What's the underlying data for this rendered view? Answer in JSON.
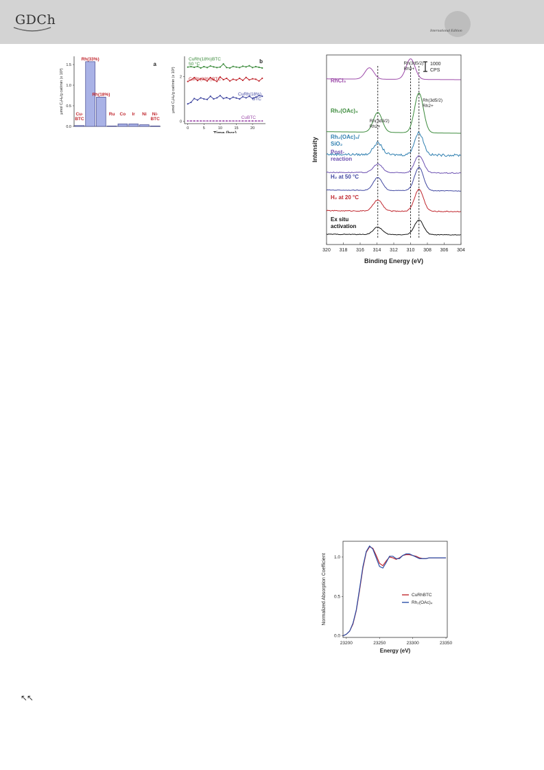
{
  "header": {
    "logo_text": "GDCh",
    "edition": "International Edition"
  },
  "colors": {
    "header_bg": "#d3d3d3",
    "bar": "#a9b2e6",
    "red_label": "#c0262d",
    "green": "#3a8a3a",
    "purple": "#9b48a8",
    "blue": "#3f46a0",
    "teal": "#2f7fb0",
    "black": "#111111"
  },
  "footer": {
    "nav_icon": "double-up-left-arrow-icon",
    "glyph": "↖↖"
  },
  "chart_data": [
    {
      "panel": "a",
      "type": "bar",
      "categories": [
        "Cu-BTC",
        "Rh(33%)",
        "Rh(18%)",
        "Ru",
        "Co",
        "Ir",
        "Ni",
        "Ni-BTC"
      ],
      "category_labels": [
        "Cu-\nBTC",
        "Rh(33%)",
        "Rh(18%)",
        "Ru",
        "Co",
        "Ir",
        "Ni",
        "Ni-\nBTC"
      ],
      "values": [
        0.02,
        1.57,
        0.71,
        0.01,
        0.06,
        0.06,
        0.04,
        0.01
      ],
      "ylabel": "μmol C₂H₆/g cat/min (x 10³)",
      "yticks": [
        "0.0",
        "0.5",
        "1.0",
        "1.5"
      ],
      "ylim": [
        0,
        1.7
      ],
      "label": "a"
    },
    {
      "panel": "b",
      "type": "line",
      "x": [
        0,
        1,
        2,
        3,
        4,
        5,
        6,
        7,
        8,
        9,
        10,
        11,
        12,
        13,
        14,
        15,
        16,
        17,
        18,
        19,
        20,
        21,
        22,
        23
      ],
      "series": [
        {
          "name": "CuRh(18%)BTC 50 °C",
          "label_lines": [
            "CuRh(18%)BTC",
            "50 °C"
          ],
          "color": "#3a8a3a",
          "values": [
            2.42,
            2.44,
            2.41,
            2.45,
            2.38,
            2.44,
            2.4,
            2.47,
            2.43,
            2.4,
            2.42,
            2.56,
            2.4,
            2.38,
            2.45,
            2.42,
            2.4,
            2.46,
            2.43,
            2.48,
            2.4,
            2.44,
            2.41,
            2.38
          ]
        },
        {
          "name": "CuRh(33%)BTC",
          "label_lines": [
            "CuRh(33%)BTC"
          ],
          "color": "#c0262d",
          "values": [
            1.78,
            1.85,
            1.95,
            1.82,
            1.9,
            1.88,
            1.8,
            1.95,
            1.85,
            1.78,
            1.98,
            1.86,
            1.92,
            1.8,
            1.88,
            1.84,
            1.92,
            1.83,
            1.96,
            1.85,
            1.9,
            1.88,
            1.8,
            1.92
          ]
        },
        {
          "name": "CuRh(18%) BTC",
          "label_lines": [
            "CuRh(18%)",
            "BTC"
          ],
          "color": "#3f46a0",
          "values": [
            0.78,
            0.85,
            1.02,
            0.95,
            1.05,
            1.0,
            0.98,
            1.12,
            1.0,
            1.05,
            1.15,
            1.02,
            1.06,
            1.0,
            1.08,
            1.04,
            1.0,
            1.1,
            1.05,
            1.12,
            1.02,
            1.08,
            1.15,
            1.12
          ]
        },
        {
          "name": "CuBTC",
          "label_lines": [
            "CuBTC"
          ],
          "color": "#9b48a8",
          "values": [
            0.02,
            0.02,
            0.02,
            0.02,
            0.02,
            0.02,
            0.02,
            0.02,
            0.02,
            0.02,
            0.02,
            0.02,
            0.02,
            0.02,
            0.02,
            0.02,
            0.02,
            0.02,
            0.02,
            0.02,
            0.02,
            0.02,
            0.02,
            0.02
          ]
        }
      ],
      "xlabel": "Time (hrs)",
      "ylabel": "μmol C₂H₆/g cat/min (x 10³)",
      "xticks": [
        "0",
        "5",
        "10",
        "15",
        "20"
      ],
      "yticks": [
        "0",
        "2"
      ],
      "xlim": [
        -1,
        24
      ],
      "ylim": [
        -0.1,
        2.9
      ],
      "label": "b"
    },
    {
      "panel": "xps",
      "type": "line",
      "xlabel": "Binding Energy (eV)",
      "ylabel": "Intensity",
      "xticks": [
        "320",
        "318",
        "316",
        "314",
        "312",
        "310",
        "308",
        "306",
        "304"
      ],
      "xlim": [
        320,
        304
      ],
      "x_reversed": true,
      "scale_bar": [
        "1000",
        "CPS"
      ],
      "reference_lines_eV": [
        313.9,
        310.0,
        309.0
      ],
      "annotations": [
        {
          "lines": [
            "Rh(3d5/2)",
            "Rh3+"
          ],
          "x": 310.0
        },
        {
          "lines": [
            "Rh(3d3/2)",
            "Rh2+"
          ],
          "x": 313.9
        },
        {
          "lines": [
            "Rh(3d5/2)",
            "Rh2+"
          ],
          "x": 308.4
        }
      ],
      "series": [
        {
          "name": "RhCl3",
          "label_lines": [
            "RhCl₃"
          ],
          "color": "#9b48a8",
          "peaks": [
            [
              314.9,
              0.55
            ],
            [
              310.0,
              1.0
            ]
          ],
          "noise": 0.0
        },
        {
          "name": "Rh2(OAc)4",
          "label_lines": [
            "Rh₂(OAc)₄"
          ],
          "color": "#3a8a3a",
          "peaks": [
            [
              313.9,
              0.5
            ],
            [
              309.0,
              1.0
            ]
          ],
          "noise": 0.0
        },
        {
          "name": "Rh2(OAc)4/SiO2",
          "label_lines": [
            "Rh₂(OAc)₄/",
            "SiO₂"
          ],
          "color": "#2f7fb0",
          "peaks": [
            [
              313.9,
              0.5
            ],
            [
              309.0,
              0.95
            ]
          ],
          "noise": 0.25
        },
        {
          "name": "Post-reaction",
          "label_lines": [
            "Post-",
            "reaction"
          ],
          "color": "#6a4fb0",
          "peaks": [
            [
              313.9,
              0.45
            ],
            [
              309.0,
              0.9
            ]
          ],
          "noise": 0.12
        },
        {
          "name": "H2 at 50 °C",
          "label_lines": [
            "H₂ at 50 °C"
          ],
          "color": "#3f46a0",
          "peaks": [
            [
              313.9,
              0.55
            ],
            [
              309.0,
              1.0
            ]
          ],
          "noise": 0.06
        },
        {
          "name": "H2 at 20 °C",
          "label_lines": [
            "H₂ at 20 °C"
          ],
          "color": "#c0262d",
          "peaks": [
            [
              313.9,
              0.5
            ],
            [
              309.0,
              1.0
            ]
          ],
          "noise": 0.1
        },
        {
          "name": "Ex situ activation",
          "label_lines": [
            "Ex situ",
            "activation"
          ],
          "color": "#111111",
          "peaks": [
            [
              313.9,
              0.45
            ],
            [
              309.0,
              0.9
            ]
          ],
          "noise": 0.1
        }
      ]
    },
    {
      "panel": "xanes",
      "type": "line",
      "xlabel": "Energy (eV)",
      "ylabel": "Normalized Absorption Coefficient",
      "xticks": [
        "23200",
        "23250",
        "23300",
        "23350"
      ],
      "yticks": [
        "0.0",
        "0.5",
        "1.0"
      ],
      "xlim": [
        23195,
        23352
      ],
      "ylim": [
        -0.02,
        1.2
      ],
      "x": [
        23195,
        23200,
        23205,
        23210,
        23215,
        23220,
        23225,
        23230,
        23235,
        23240,
        23245,
        23250,
        23255,
        23260,
        23265,
        23270,
        23275,
        23280,
        23285,
        23290,
        23295,
        23300,
        23305,
        23310,
        23315,
        23320,
        23325,
        23330,
        23335,
        23340,
        23345,
        23350
      ],
      "series": [
        {
          "name": "CuRhBTC",
          "color": "#c0262d",
          "values": [
            0.0,
            0.02,
            0.06,
            0.15,
            0.32,
            0.58,
            0.86,
            1.06,
            1.13,
            1.11,
            1.02,
            0.92,
            0.89,
            0.95,
            1.0,
            0.99,
            0.97,
            0.99,
            1.02,
            1.03,
            1.03,
            1.02,
            1.01,
            0.99,
            0.98,
            0.98,
            0.99,
            0.99,
            0.99,
            0.99,
            0.99,
            0.99
          ]
        },
        {
          "name": "Rh2(OAc)4",
          "label": "Rh₂(OAc)₄",
          "color": "#2a4fa8",
          "values": [
            0.0,
            0.02,
            0.06,
            0.16,
            0.33,
            0.6,
            0.88,
            1.07,
            1.14,
            1.1,
            0.99,
            0.88,
            0.86,
            0.93,
            1.01,
            1.01,
            0.98,
            0.98,
            1.02,
            1.04,
            1.04,
            1.02,
            1.0,
            0.98,
            0.98,
            0.98,
            0.99,
            0.99,
            0.99,
            0.99,
            0.99,
            0.99
          ]
        }
      ]
    }
  ]
}
